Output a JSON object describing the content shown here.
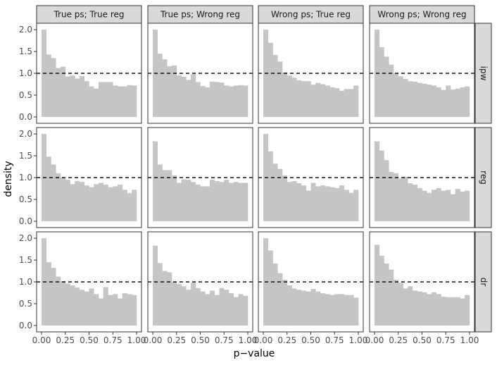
{
  "chart_data": {
    "type": "bar",
    "subtype": "faceted-histogram",
    "title": "",
    "xlabel": "p−value",
    "ylabel": "density",
    "xlim": [
      0,
      1
    ],
    "ylim": [
      0,
      2.05
    ],
    "bin_width": 0.05,
    "bar_color": "#c5c5c5",
    "reference_line": {
      "y": 1.0,
      "style": "dashed",
      "color": "#000000"
    },
    "x_ticks": [
      {
        "value": 0,
        "label": "0.00"
      },
      {
        "value": 0.25,
        "label": "0.25"
      },
      {
        "value": 0.5,
        "label": "0.50"
      },
      {
        "value": 0.75,
        "label": "0.75"
      },
      {
        "value": 1,
        "label": "1.00"
      }
    ],
    "y_ticks": [
      {
        "value": 0,
        "label": "0.0"
      },
      {
        "value": 0.5,
        "label": "0.5"
      },
      {
        "value": 1,
        "label": "1.0"
      },
      {
        "value": 1.5,
        "label": "1.5"
      },
      {
        "value": 2,
        "label": "2.0"
      }
    ],
    "columns": [
      "True ps; True reg",
      "True ps; Wrong reg",
      "Wrong ps; True reg",
      "Wrong ps; Wrong reg"
    ],
    "rows": [
      "ipw",
      "reg",
      "dr"
    ],
    "panels": [
      [
        [
          2.0,
          1.43,
          1.35,
          1.12,
          1.15,
          0.93,
          0.95,
          0.88,
          0.94,
          0.82,
          0.7,
          0.65,
          0.8,
          0.8,
          0.8,
          0.72,
          0.7,
          0.7,
          0.73,
          0.72
        ],
        [
          2.0,
          1.45,
          1.32,
          1.16,
          1.18,
          0.95,
          0.92,
          0.85,
          0.98,
          0.8,
          0.71,
          0.68,
          0.81,
          0.8,
          0.79,
          0.72,
          0.7,
          0.72,
          0.73,
          0.72
        ],
        [
          2.0,
          1.7,
          1.42,
          1.27,
          1.02,
          0.95,
          0.9,
          0.84,
          0.82,
          0.82,
          0.74,
          0.78,
          0.75,
          0.72,
          0.68,
          0.66,
          0.6,
          0.64,
          0.64,
          0.72
        ],
        [
          2.0,
          1.6,
          1.38,
          1.2,
          1.0,
          0.93,
          0.87,
          0.82,
          0.81,
          0.78,
          0.76,
          0.74,
          0.72,
          0.68,
          0.62,
          0.72,
          0.63,
          0.65,
          0.68,
          0.7
        ]
      ],
      [
        [
          2.0,
          1.48,
          1.3,
          1.1,
          1.0,
          0.95,
          0.85,
          0.92,
          0.9,
          0.82,
          0.78,
          0.85,
          0.88,
          0.84,
          0.78,
          0.8,
          0.84,
          0.72,
          0.64,
          0.72
        ],
        [
          1.83,
          1.3,
          1.17,
          1.17,
          1.05,
          0.88,
          0.96,
          0.95,
          0.9,
          0.84,
          0.8,
          0.8,
          0.95,
          0.92,
          0.9,
          0.95,
          0.88,
          0.9,
          0.88,
          0.88
        ],
        [
          2.0,
          1.6,
          1.32,
          1.2,
          1.05,
          0.9,
          0.92,
          0.87,
          0.82,
          0.7,
          0.88,
          0.8,
          0.82,
          0.8,
          0.78,
          0.76,
          0.82,
          0.72,
          0.65,
          0.72
        ],
        [
          1.83,
          1.62,
          1.4,
          1.13,
          1.1,
          0.98,
          1.02,
          0.87,
          0.84,
          0.76,
          0.7,
          0.65,
          0.72,
          0.76,
          0.7,
          0.72,
          0.62,
          0.74,
          0.68,
          0.7
        ]
      ],
      [
        [
          2.0,
          1.45,
          1.32,
          1.12,
          1.02,
          0.96,
          0.92,
          0.87,
          0.82,
          0.78,
          0.85,
          0.72,
          0.62,
          0.88,
          0.7,
          0.72,
          0.62,
          0.74,
          0.72,
          0.7
        ],
        [
          1.83,
          1.43,
          1.25,
          1.22,
          1.0,
          0.95,
          0.9,
          0.82,
          0.98,
          0.86,
          0.78,
          0.72,
          0.8,
          0.7,
          0.86,
          0.82,
          0.74,
          0.65,
          0.72,
          0.68
        ],
        [
          2.0,
          1.72,
          1.42,
          1.2,
          1.05,
          0.92,
          0.85,
          0.82,
          0.8,
          0.78,
          0.84,
          0.78,
          0.74,
          0.72,
          0.7,
          0.72,
          0.72,
          0.7,
          0.7,
          0.64
        ],
        [
          1.85,
          1.6,
          1.42,
          1.28,
          1.05,
          0.98,
          0.85,
          0.9,
          0.8,
          0.78,
          0.76,
          0.72,
          0.76,
          0.72,
          0.66,
          0.65,
          0.65,
          0.65,
          0.62,
          0.7
        ]
      ]
    ]
  }
}
